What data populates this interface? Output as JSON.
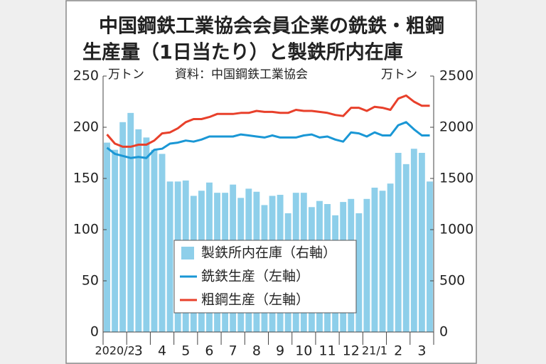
{
  "chart_data": {
    "type": "bar-line",
    "title": [
      "中国鋼鉄工業協会会員企業の銑鉄・粗鋼",
      "生産量（1日当たり）と製鉄所内在庫"
    ],
    "y_label": "万トン",
    "y2_label": "万トン",
    "source": "資料：中国鋼鉄工業協会",
    "categories": [
      null,
      "2020/2",
      null,
      null,
      "3",
      null,
      null,
      "4",
      null,
      null,
      "5",
      null,
      null,
      "6",
      null,
      null,
      "7",
      null,
      null,
      "8",
      null,
      null,
      "9",
      null,
      null,
      "10",
      null,
      null,
      "11",
      null,
      null,
      "12",
      null,
      null,
      "21/1",
      null,
      null,
      "2",
      null,
      null,
      "3",
      null
    ],
    "series": [
      {
        "name": "製鉄所内在庫（右軸）",
        "type": "bar",
        "axis": "y2",
        "color": "#8ecfea",
        "values": [
          1850,
          1780,
          2050,
          2140,
          1980,
          1900,
          1780,
          1740,
          1470,
          1470,
          1480,
          1330,
          1380,
          1460,
          1360,
          1360,
          1440,
          1310,
          1400,
          1370,
          1240,
          1330,
          1340,
          1160,
          1360,
          1360,
          1220,
          1280,
          1250,
          1140,
          1270,
          1300,
          1160,
          1300,
          1410,
          1380,
          1450,
          1750,
          1640,
          1790,
          1750,
          1470
        ]
      },
      {
        "name": "銑鉄生産（左軸）",
        "type": "line",
        "axis": "y",
        "color": "#1a97d5",
        "values": [
          180,
          174,
          172,
          170,
          171,
          170,
          178,
          179,
          184,
          185,
          187,
          186,
          188,
          191,
          191,
          191,
          191,
          193,
          192,
          191,
          190,
          192,
          190,
          190,
          190,
          192,
          193,
          190,
          191,
          188,
          186,
          195,
          194,
          191,
          195,
          192,
          192,
          202,
          205,
          198,
          192,
          192
        ]
      },
      {
        "name": "粗鋼生産（左軸）",
        "type": "line",
        "axis": "y",
        "color": "#e8402b",
        "values": [
          193,
          184,
          181,
          181,
          183,
          183,
          187,
          194,
          195,
          199,
          205,
          208,
          208,
          210,
          213,
          213,
          213,
          214,
          214,
          216,
          215,
          215,
          214,
          214,
          217,
          216,
          216,
          215,
          214,
          212,
          211,
          219,
          219,
          216,
          220,
          219,
          217,
          228,
          231,
          225,
          221,
          221
        ]
      }
    ],
    "ylim": [
      0,
      250
    ],
    "yticks": [
      0,
      50,
      100,
      150,
      200,
      250
    ],
    "y2lim": [
      0,
      2500
    ],
    "y2ticks": [
      0,
      500,
      1000,
      1500,
      2000,
      2500
    ],
    "legend": "lower-center"
  }
}
